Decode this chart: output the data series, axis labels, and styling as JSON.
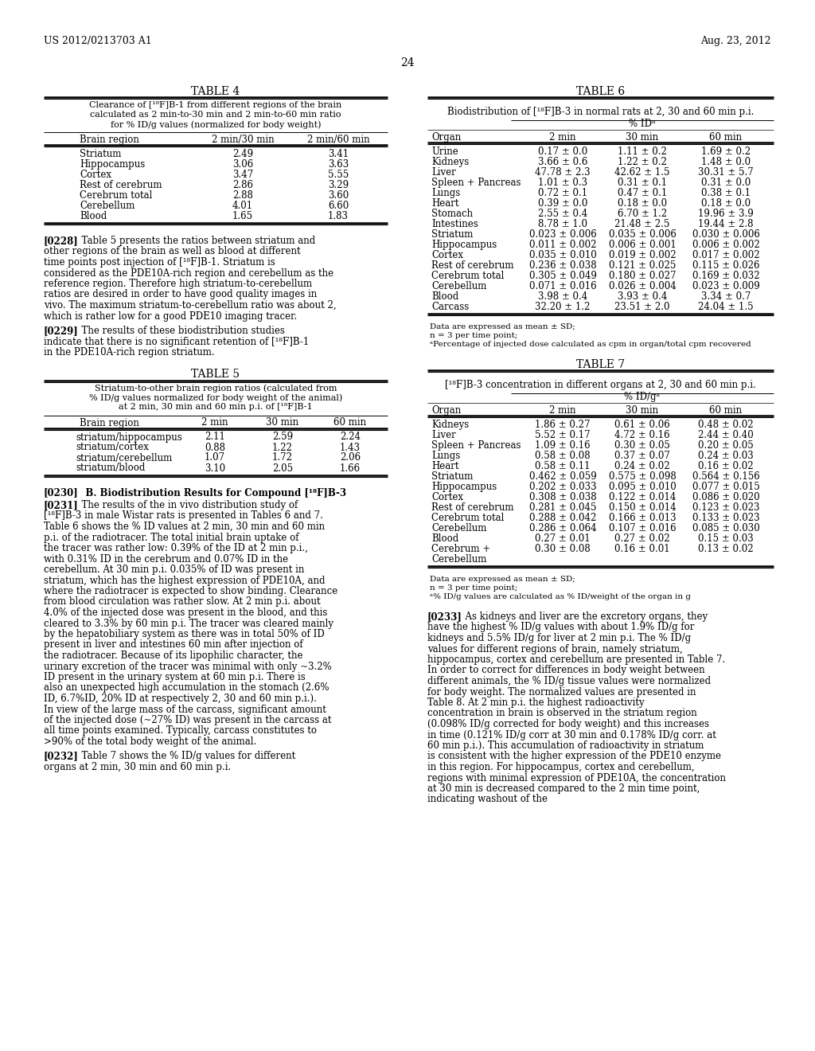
{
  "header_left": "US 2012/0213703 A1",
  "header_right": "Aug. 23, 2012",
  "page_number": "24",
  "background_color": "#ffffff",
  "table4_title": "TABLE 4",
  "table4_caption_lines": [
    "Clearance of [¹⁸F]B-1 from different regions of the brain",
    "calculated as 2 min-to-30 min and 2 min-to-60 min ratio",
    "for % ID/g values (normalized for body weight)"
  ],
  "table4_col1_header": "Brain region",
  "table4_col2_header": "2 min/30 min",
  "table4_col3_header": "2 min/60 min",
  "table4_rows": [
    [
      "Striatum",
      "2.49",
      "3.41"
    ],
    [
      "Hippocampus",
      "3.06",
      "3.63"
    ],
    [
      "Cortex",
      "3.47",
      "5.55"
    ],
    [
      "Rest of cerebrum",
      "2.86",
      "3.29"
    ],
    [
      "Cerebrum total",
      "2.88",
      "3.60"
    ],
    [
      "Cerebellum",
      "4.01",
      "6.60"
    ],
    [
      "Blood",
      "1.65",
      "1.83"
    ]
  ],
  "table5_title": "TABLE 5",
  "table5_caption_lines": [
    "Striatum-to-other brain region ratios (calculated from",
    "% ID/g values normalized for body weight of the animal)",
    "at 2 min, 30 min and 60 min p.i. of [¹⁸F]B-1"
  ],
  "table5_col1_header": "Brain region",
  "table5_col2_header": "2 min",
  "table5_col3_header": "30 min",
  "table5_col4_header": "60 min",
  "table5_rows": [
    [
      "striatum/hippocampus",
      "2.11",
      "2.59",
      "2.24"
    ],
    [
      "striatum/cortex",
      "0.88",
      "1.22",
      "1.43"
    ],
    [
      "striatum/cerebellum",
      "1.07",
      "1.72",
      "2.06"
    ],
    [
      "striatum/blood",
      "3.10",
      "2.05",
      "1.66"
    ]
  ],
  "table6_title": "TABLE 6",
  "table6_caption": "Biodistribution of [¹⁸F]B-3 in normal rats at 2, 30 and 60 min p.i.",
  "table6_subheader": "% IDᵃ",
  "table6_col1_header": "Organ",
  "table6_col2_header": "2 min",
  "table6_col3_header": "30 min",
  "table6_col4_header": "60 min",
  "table6_rows": [
    [
      "Urine",
      "0.17 ± 0.0",
      "1.11 ± 0.2",
      "1.69 ± 0.2"
    ],
    [
      "Kidneys",
      "3.66 ± 0.6",
      "1.22 ± 0.2",
      "1.48 ± 0.0"
    ],
    [
      "Liver",
      "47.78 ± 2.3",
      "42.62 ± 1.5",
      "30.31 ± 5.7"
    ],
    [
      "Spleen + Pancreas",
      "1.01 ± 0.3",
      "0.31 ± 0.1",
      "0.31 ± 0.0"
    ],
    [
      "Lungs",
      "0.72 ± 0.1",
      "0.47 ± 0.1",
      "0.38 ± 0.1"
    ],
    [
      "Heart",
      "0.39 ± 0.0",
      "0.18 ± 0.0",
      "0.18 ± 0.0"
    ],
    [
      "Stomach",
      "2.55 ± 0.4",
      "6.70 ± 1.2",
      "19.96 ± 3.9"
    ],
    [
      "Intestines",
      "8.78 ± 1.0",
      "21.48 ± 2.5",
      "19.44 ± 2.8"
    ],
    [
      "Striatum",
      "0.023 ± 0.006",
      "0.035 ± 0.006",
      "0.030 ± 0.006"
    ],
    [
      "Hippocampus",
      "0.011 ± 0.002",
      "0.006 ± 0.001",
      "0.006 ± 0.002"
    ],
    [
      "Cortex",
      "0.035 ± 0.010",
      "0.019 ± 0.002",
      "0.017 ± 0.002"
    ],
    [
      "Rest of cerebrum",
      "0.236 ± 0.038",
      "0.121 ± 0.025",
      "0.115 ± 0.026"
    ],
    [
      "Cerebrum total",
      "0.305 ± 0.049",
      "0.180 ± 0.027",
      "0.169 ± 0.032"
    ],
    [
      "Cerebellum",
      "0.071 ± 0.016",
      "0.026 ± 0.004",
      "0.023 ± 0.009"
    ],
    [
      "Blood",
      "3.98 ± 0.4",
      "3.93 ± 0.4",
      "3.34 ± 0.7"
    ],
    [
      "Carcass",
      "32.20 ± 1.2",
      "23.51 ± 2.0",
      "24.04 ± 1.5"
    ]
  ],
  "table6_footnotes": [
    "Data are expressed as mean ± SD;",
    "n = 3 per time point;",
    "ᵃPercentage of injected dose calculated as cpm in organ/total cpm recovered"
  ],
  "table7_title": "TABLE 7",
  "table7_caption": "[¹⁸F]B-3 concentration in different organs at 2, 30 and 60 min p.i.",
  "table7_subheader": "% ID/gᵃ",
  "table7_col1_header": "Organ",
  "table7_col2_header": "2 min",
  "table7_col3_header": "30 min",
  "table7_col4_header": "60 min",
  "table7_rows": [
    [
      "Kidneys",
      "1.86 ± 0.27",
      "0.61 ± 0.06",
      "0.48 ± 0.02"
    ],
    [
      "Liver",
      "5.52 ± 0.17",
      "4.72 ± 0.16",
      "2.44 ± 0.40"
    ],
    [
      "Spleen + Pancreas",
      "1.09 ± 0.16",
      "0.30 ± 0.05",
      "0.20 ± 0.05"
    ],
    [
      "Lungs",
      "0.58 ± 0.08",
      "0.37 ± 0.07",
      "0.24 ± 0.03"
    ],
    [
      "Heart",
      "0.58 ± 0.11",
      "0.24 ± 0.02",
      "0.16 ± 0.02"
    ],
    [
      "Striatum",
      "0.462 ± 0.059",
      "0.575 ± 0.098",
      "0.564 ± 0.156"
    ],
    [
      "Hippocampus",
      "0.202 ± 0.033",
      "0.095 ± 0.010",
      "0.077 ± 0.015"
    ],
    [
      "Cortex",
      "0.308 ± 0.038",
      "0.122 ± 0.014",
      "0.086 ± 0.020"
    ],
    [
      "Rest of cerebrum",
      "0.281 ± 0.045",
      "0.150 ± 0.014",
      "0.123 ± 0.023"
    ],
    [
      "Cerebrum total",
      "0.288 ± 0.042",
      "0.166 ± 0.013",
      "0.133 ± 0.023"
    ],
    [
      "Cerebellum",
      "0.286 ± 0.064",
      "0.107 ± 0.016",
      "0.085 ± 0.030"
    ],
    [
      "Blood",
      "0.27 ± 0.01",
      "0.27 ± 0.02",
      "0.15 ± 0.03"
    ],
    [
      "Cerebrum +",
      "0.30 ± 0.08",
      "0.16 ± 0.01",
      "0.13 ± 0.02"
    ],
    [
      "Cerebellum",
      "",
      "",
      ""
    ]
  ],
  "table7_footnotes": [
    "Data are expressed as mean ± SD;",
    "n = 3 per time point;",
    "ᵃ% ID/g values are calculated as % ID/weight of the organ in g"
  ],
  "para228": "[0228]   Table 5 presents the ratios between striatum and other regions of the brain as well as blood at different time points post injection of [¹⁸F]B-1. Striatum is considered as the PDE10A-rich region and cerebellum as the reference region. Therefore high striatum-to-cerebellum ratios are desired in order to have good quality images in vivo. The maximum striatum-to-cerebellum ratio was about 2, which is rather low for a good PDE10 imaging tracer.",
  "para229": "[0229]   The results of these biodistribution studies indicate that there is no significant retention of [¹⁸F]B-1 in the PDE10A-rich region striatum.",
  "para230": "[0230]   B. Biodistribution Results for Compound [¹⁸F]B-3",
  "para231": "[0231]   The results of the in vivo distribution study of [¹⁸F]B-3 in male Wistar rats is presented in Tables 6 and 7. Table 6 shows the % ID values at 2 min, 30 min and 60 min p.i. of the radiotracer. The total initial brain uptake of the tracer was rather low: 0.39% of the ID at 2 min p.i., with 0.31% ID in the cerebrum and 0.07% ID in the cerebellum. At 30 min p.i. 0.035% of ID was present in striatum, which has the highest expression of PDE10A, and where the radiotracer is expected to show binding. Clearance from blood circulation was rather slow. At 2 min p.i. about 4.0% of the injected dose was present in the blood, and this cleared to 3.3% by 60 min p.i. The tracer was cleared mainly by the hepatobiliary system as there was in total 50% of ID present in liver and intestines 60 min after injection of the radiotracer. Because of its lipophilic character, the urinary excretion of the tracer was minimal with only ~3.2% ID present in the urinary system at 60 min p.i. There is also an unexpected high accumulation in the stomach (2.6% ID, 6.7%ID, 20% ID at respectively 2, 30 and 60 min p.i.). In view of the large mass of the carcass, significant amount of the injected dose (~27% ID) was present in the carcass at all time points examined. Typically, carcass constitutes to >90% of the total body weight of the animal.",
  "para232": "[0232]   Table 7 shows the % ID/g values for different organs at 2 min, 30 min and 60 min p.i.",
  "para233": "[0233]   As kidneys and liver are the excretory organs, they have the highest % ID/g values with about 1.9% ID/g for kidneys and 5.5% ID/g for liver at 2 min p.i. The % ID/g values for different regions of brain, namely striatum, hippocampus, cortex and cerebellum are presented in Table 7. In order to correct for differences in body weight between different animals, the % ID/g tissue values were normalized for body weight. The normalized values are presented in Table 8. At 2 min p.i. the highest radioactivity concentration in brain is observed in the striatum region (0.098% ID/g corrected for body weight) and this increases in time (0.121% ID/g corr at 30 min and 0.178% ID/g corr. at 60 min p.i.). This accumulation of radioactivity in striatum is consistent with the higher expression of the PDE10 enzyme in this region. For hippocampus, cortex and cerebellum, regions with minimal expression of PDE10A, the concentration at 30 min is decreased compared to the 2 min time point, indicating washout of the"
}
